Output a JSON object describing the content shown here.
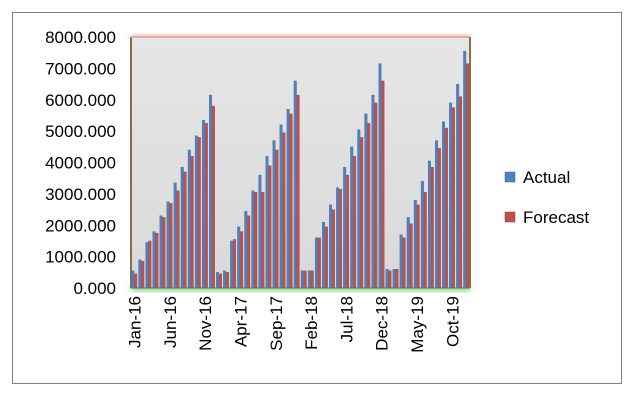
{
  "chart_data": {
    "type": "bar",
    "title": "",
    "xlabel": "",
    "ylabel": "",
    "ylim": [
      0,
      8000
    ],
    "y_ticks": [
      "0.000",
      "1000.000",
      "2000.000",
      "3000.000",
      "4000.000",
      "5000.000",
      "6000.000",
      "7000.000",
      "8000.000"
    ],
    "x_tick_labels": [
      "Jan-16",
      "Jun-16",
      "Nov-16",
      "Apr-17",
      "Sep-17",
      "Feb-18",
      "Jul-18",
      "Dec-18",
      "May-19",
      "Oct-19"
    ],
    "grid": false,
    "legend_position": "right",
    "categories": [
      "Jan-16",
      "Feb-16",
      "Mar-16",
      "Apr-16",
      "May-16",
      "Jun-16",
      "Jul-16",
      "Aug-16",
      "Sep-16",
      "Oct-16",
      "Nov-16",
      "Dec-16",
      "Jan-17",
      "Feb-17",
      "Mar-17",
      "Apr-17",
      "May-17",
      "Jun-17",
      "Jul-17",
      "Aug-17",
      "Sep-17",
      "Oct-17",
      "Nov-17",
      "Dec-17",
      "Jan-18",
      "Feb-18",
      "Mar-18",
      "Apr-18",
      "May-18",
      "Jun-18",
      "Jul-18",
      "Aug-18",
      "Sep-18",
      "Oct-18",
      "Nov-18",
      "Dec-18",
      "Jan-19",
      "Feb-19",
      "Mar-19",
      "Apr-19",
      "May-19",
      "Jun-19",
      "Jul-19",
      "Aug-19",
      "Sep-19",
      "Oct-19",
      "Nov-19",
      "Dec-19"
    ],
    "series": [
      {
        "name": "Actual",
        "color": "#4f81bd",
        "values": [
          550,
          900,
          1450,
          1800,
          2300,
          2750,
          3350,
          3850,
          4400,
          4850,
          5350,
          6150,
          500,
          550,
          1500,
          1950,
          2450,
          3100,
          3600,
          4200,
          4700,
          5200,
          5700,
          6600,
          550,
          550,
          1600,
          2100,
          2650,
          3200,
          3850,
          4500,
          5050,
          5550,
          6150,
          7150,
          600,
          600,
          1700,
          2250,
          2800,
          3400,
          4050,
          4700,
          5300,
          5900,
          6500,
          7550
        ]
      },
      {
        "name": "Forecast",
        "color": "#c0504d",
        "values": [
          450,
          850,
          1500,
          1750,
          2250,
          2700,
          3100,
          3700,
          4200,
          4800,
          5250,
          5800,
          450,
          500,
          1550,
          1800,
          2300,
          3050,
          3050,
          3900,
          4400,
          4950,
          5550,
          6150,
          550,
          550,
          1600,
          1950,
          2500,
          3150,
          3600,
          4200,
          4800,
          5250,
          5900,
          6600,
          550,
          600,
          1600,
          2050,
          2650,
          3050,
          3850,
          4450,
          5100,
          5750,
          6100,
          7150
        ]
      }
    ]
  }
}
